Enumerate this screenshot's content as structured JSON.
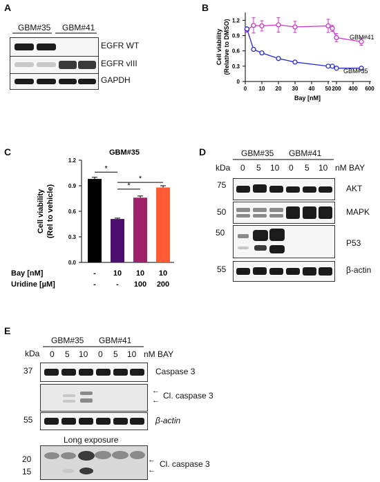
{
  "panels": {
    "A": {
      "letter": "A",
      "groups": [
        "GBM#35",
        "GBM#41"
      ],
      "rows": [
        "EGFR WT",
        "EGFR vIII",
        "GAPDH"
      ]
    },
    "B": {
      "letter": "B",
      "series_labels": [
        "GBM#41",
        "GBM#35"
      ]
    },
    "C": {
      "letter": "C",
      "title": "GBM#35",
      "row_labels": [
        "Bay [nM]",
        "Uridine [µM]"
      ],
      "bay_values": [
        "-",
        "10",
        "10",
        "10"
      ],
      "uridine_values": [
        "-",
        "-",
        "100",
        "200"
      ],
      "sig_marks": [
        "*",
        "*",
        "*"
      ]
    },
    "D": {
      "letter": "D",
      "kda_label": "kDa",
      "groups": [
        "GBM#35",
        "GBM#41"
      ],
      "doses": [
        "0",
        "5",
        "10",
        "0",
        "5",
        "10"
      ],
      "dose_unit": "nM BAY",
      "markers": [
        "75",
        "50",
        "50",
        "55"
      ],
      "rows": [
        "AKT",
        "MAPK",
        "P53",
        "β-actin"
      ]
    },
    "E": {
      "letter": "E",
      "kda_label": "kDa",
      "groups": [
        "GBM#35",
        "GBM#41"
      ],
      "doses": [
        "0",
        "5",
        "10",
        "0",
        "5",
        "10"
      ],
      "dose_unit": "nM BAY",
      "markers": [
        "37",
        "55",
        "20",
        "15"
      ],
      "rows": [
        "Caspase 3",
        "Cl. caspase 3",
        "β-actin",
        "Cl. caspase 3"
      ],
      "long_exposure_label": "Long exposure"
    }
  },
  "chart_data": [
    {
      "panel": "B",
      "type": "line",
      "xlabel": "Bay [nM]",
      "ylabel": "Cell viability (Relative to DMSO)",
      "x_ticks": [
        "0",
        "10",
        "20",
        "30",
        "40",
        "50",
        "200",
        "400",
        "600"
      ],
      "y_ticks": [
        "0",
        "0.3",
        "0.6",
        "0.9",
        "1.2"
      ],
      "ylim": [
        0,
        1.3
      ],
      "x_axis_broken": true,
      "x_segments": [
        [
          0,
          50
        ],
        [
          150,
          600
        ]
      ],
      "series": [
        {
          "name": "GBM#41",
          "color": "#cc33cc",
          "x": [
            1,
            5,
            10,
            20,
            30,
            50,
            150,
            200,
            500
          ],
          "y": [
            1.01,
            1.1,
            1.09,
            1.11,
            1.07,
            1.09,
            1.04,
            0.86,
            0.78
          ],
          "err": [
            0.03,
            0.15,
            0.1,
            0.14,
            0.11,
            0.13,
            0.06,
            0.08,
            0.07
          ]
        },
        {
          "name": "GBM#35",
          "color": "#2a2ad8",
          "x": [
            1,
            5,
            10,
            20,
            30,
            50,
            150,
            200,
            500
          ],
          "y": [
            1.03,
            0.63,
            0.56,
            0.45,
            0.38,
            0.3,
            0.3,
            0.26,
            0.26
          ],
          "err": [
            0.02,
            0.02,
            0.02,
            0.02,
            0.01,
            0.01,
            0.01,
            0.01,
            0.01
          ]
        }
      ]
    },
    {
      "panel": "C",
      "type": "bar",
      "title": "GBM#35",
      "ylabel": "Cell viability (Rel to vehicle)",
      "y_ticks": [
        "0.0",
        "0.3",
        "0.6",
        "0.9",
        "1.2"
      ],
      "ylim": [
        0,
        1.2
      ],
      "categories": [
        "-/-",
        "10/-",
        "10/100",
        "10/200"
      ],
      "values": [
        0.98,
        0.51,
        0.76,
        0.88
      ],
      "errors": [
        0.02,
        0.01,
        0.02,
        0.02
      ],
      "colors": [
        "#000000",
        "#4b0f6e",
        "#a0206a",
        "#ff5a36"
      ]
    }
  ]
}
